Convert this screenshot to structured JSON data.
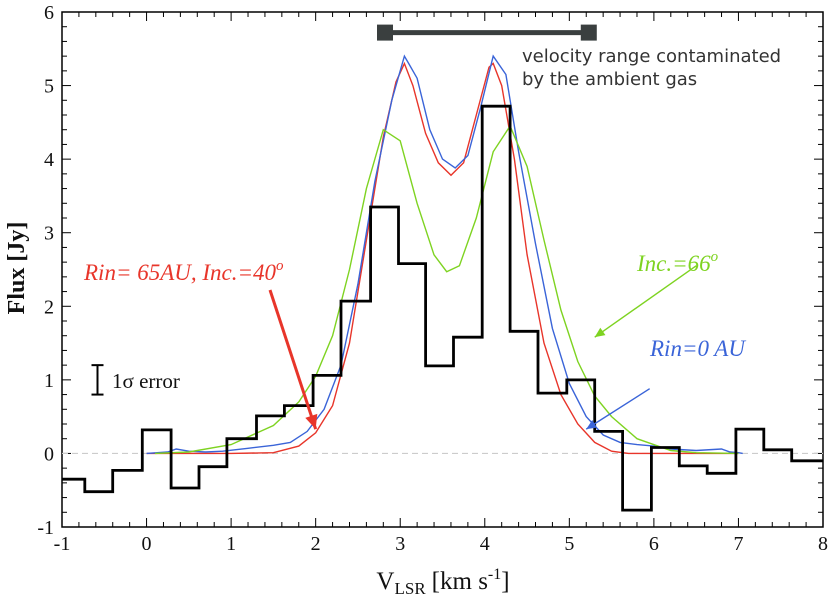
{
  "chart_data": {
    "type": "line",
    "xlabel": "V",
    "xlabel_sub": "LSR",
    "xlabel_units": "[km s",
    "xlabel_units_exp": "-1",
    "xlabel_units_close": "]",
    "ylabel": "Flux [Jy]",
    "xlim": [
      -1,
      8
    ],
    "ylim": [
      -1,
      6
    ],
    "xticks": [
      "-1",
      "0",
      "1",
      "2",
      "3",
      "4",
      "5",
      "6",
      "7",
      "8"
    ],
    "yticks": [
      "-1",
      "0",
      "1",
      "2",
      "3",
      "4",
      "5",
      "6"
    ],
    "grid": false,
    "zero_line": 0,
    "observed": {
      "name": "observed spectrum",
      "color": "#000000",
      "edges": [
        -1.0,
        -0.73,
        -0.4,
        -0.05,
        0.29,
        0.62,
        0.95,
        1.3,
        1.63,
        1.97,
        2.3,
        2.65,
        2.98,
        3.3,
        3.63,
        3.97,
        4.3,
        4.63,
        4.97,
        5.3,
        5.63,
        5.97,
        6.3,
        6.63,
        6.97,
        7.3,
        7.63,
        8.0
      ],
      "values": [
        -0.35,
        -0.52,
        -0.23,
        0.32,
        -0.47,
        -0.18,
        0.2,
        0.51,
        0.65,
        1.06,
        2.07,
        3.35,
        2.58,
        1.19,
        1.58,
        4.72,
        1.66,
        0.82,
        1.0,
        0.3,
        -0.77,
        0.08,
        -0.17,
        -0.27,
        0.33,
        0.05,
        -0.1
      ]
    },
    "series": [
      {
        "name": "Rin= 65AU, Inc.=40°",
        "color": "#e8352a",
        "x": [
          0.0,
          1.0,
          1.5,
          1.8,
          2.0,
          2.2,
          2.4,
          2.6,
          2.8,
          2.95,
          3.05,
          3.15,
          3.3,
          3.45,
          3.6,
          3.75,
          3.9,
          4.05,
          4.1,
          4.2,
          4.35,
          4.5,
          4.7,
          4.9,
          5.1,
          5.3,
          5.5,
          5.7,
          6.0,
          7.0
        ],
        "y": [
          0.0,
          0.0,
          0.01,
          0.1,
          0.28,
          0.65,
          1.5,
          2.9,
          4.3,
          5.05,
          5.3,
          5.0,
          4.35,
          3.95,
          3.78,
          3.95,
          4.6,
          5.25,
          5.3,
          5.0,
          4.0,
          2.7,
          1.5,
          0.8,
          0.4,
          0.15,
          0.03,
          0.0,
          0.0,
          0.0
        ]
      },
      {
        "name": "Rin=0 AU",
        "color": "#3a64d8",
        "x": [
          0.0,
          0.25,
          0.35,
          0.5,
          0.7,
          0.9,
          1.2,
          1.5,
          1.7,
          1.9,
          2.1,
          2.3,
          2.5,
          2.7,
          2.9,
          3.05,
          3.1,
          3.2,
          3.35,
          3.5,
          3.65,
          3.8,
          3.95,
          4.1,
          4.25,
          4.4,
          4.6,
          4.8,
          5.0,
          5.2,
          5.4,
          5.6,
          5.8,
          6.0,
          6.2,
          6.5,
          6.8,
          6.9,
          7.0,
          7.05
        ],
        "y": [
          0.0,
          0.02,
          0.06,
          0.03,
          0.02,
          0.03,
          0.07,
          0.11,
          0.15,
          0.3,
          0.6,
          1.2,
          2.3,
          3.7,
          4.8,
          5.4,
          5.3,
          5.1,
          4.4,
          4.0,
          3.88,
          4.05,
          4.7,
          5.4,
          5.15,
          4.1,
          2.85,
          1.7,
          0.95,
          0.5,
          0.25,
          0.15,
          0.12,
          0.1,
          0.06,
          0.04,
          0.06,
          0.02,
          0.01,
          0.0
        ]
      },
      {
        "name": "Inc.=66°",
        "color": "#7ed321",
        "x": [
          0.1,
          0.5,
          1.0,
          1.5,
          1.8,
          2.0,
          2.2,
          2.4,
          2.6,
          2.8,
          3.0,
          3.2,
          3.4,
          3.55,
          3.7,
          3.9,
          4.1,
          4.3,
          4.5,
          4.7,
          4.9,
          5.1,
          5.3,
          5.5,
          5.8,
          6.2,
          6.5,
          7.0
        ],
        "y": [
          0.0,
          0.02,
          0.12,
          0.38,
          0.7,
          1.05,
          1.6,
          2.5,
          3.6,
          4.4,
          4.25,
          3.4,
          2.7,
          2.47,
          2.55,
          3.2,
          4.1,
          4.45,
          3.9,
          2.9,
          1.95,
          1.25,
          0.78,
          0.5,
          0.2,
          0.04,
          0.01,
          0.0
        ]
      }
    ],
    "annotations": {
      "bar_label_line1": "velocity range contaminated",
      "bar_label_line2": "by the ambient gas",
      "bar_range_x": [
        2.82,
        5.23
      ],
      "bar_y": 5.72,
      "bar_color": "#3a3f3f",
      "red_label": "Rin= 65AU, Inc.=40",
      "red_label_sup": "o",
      "green_label": "Inc.=66",
      "green_label_sup": "o",
      "blue_label": "Rin=0 AU",
      "error_label": "1σ error",
      "error_bar_halfwidth": 0.2
    }
  }
}
